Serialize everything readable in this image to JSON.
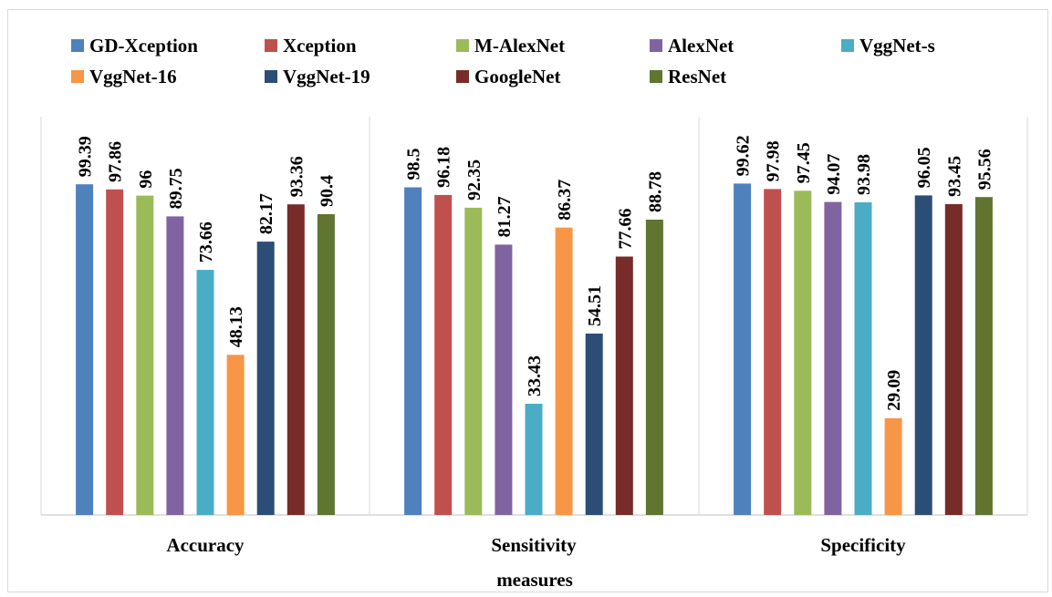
{
  "chart_data": {
    "type": "bar",
    "title": "",
    "xlabel": "measures",
    "ylabel": "",
    "ylim": [
      0,
      100
    ],
    "grid": false,
    "legend_position": "top",
    "categories": [
      "Accuracy",
      "Sensitivity",
      "Specificity"
    ],
    "series": [
      {
        "name": "GD-Xception",
        "color": "#4F81BD",
        "values": [
          99.39,
          98.5,
          99.62
        ]
      },
      {
        "name": "Xception",
        "color": "#C0504D",
        "values": [
          97.86,
          96.18,
          97.98
        ]
      },
      {
        "name": "M-AlexNet",
        "color": "#9BBB59",
        "values": [
          96,
          92.35,
          97.45
        ]
      },
      {
        "name": "AlexNet",
        "color": "#8064A2",
        "values": [
          89.75,
          81.27,
          94.07
        ]
      },
      {
        "name": "VggNet-s",
        "color": "#4BACC6",
        "values": [
          73.66,
          33.43,
          93.98
        ]
      },
      {
        "name": "VggNet-16",
        "color": "#F79646",
        "values": [
          48.13,
          86.37,
          29.09
        ]
      },
      {
        "name": "VggNet-19",
        "color": "#2C4D75",
        "values": [
          82.17,
          54.51,
          96.05
        ]
      },
      {
        "name": "GoogleNet",
        "color": "#772C2A",
        "values": [
          93.36,
          77.66,
          93.45
        ]
      },
      {
        "name": "ResNet",
        "color": "#5F7530",
        "values": [
          90.4,
          88.78,
          95.56
        ]
      }
    ]
  }
}
